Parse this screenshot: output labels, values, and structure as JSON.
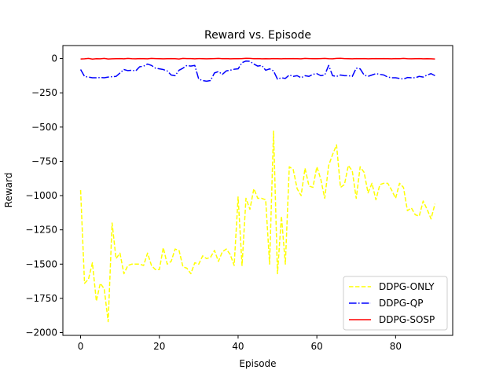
{
  "chart_data": {
    "type": "line",
    "title": "Reward vs. Episode",
    "xlabel": "Episode",
    "ylabel": "Reward",
    "xlim": [
      -4.5,
      94.5
    ],
    "ylim": [
      -2020,
      95
    ],
    "xticks": [
      0,
      20,
      40,
      60,
      80
    ],
    "yticks": [
      0,
      -250,
      -500,
      -750,
      -1000,
      -1250,
      -1500,
      -1750,
      -2000
    ],
    "ytick_labels": [
      "0",
      "−250",
      "−500",
      "−750",
      "−1000",
      "−1250",
      "−1500",
      "−1750",
      "−2000"
    ],
    "grid": false,
    "legend_position": "lower-right",
    "series": [
      {
        "name": "DDPG-ONLY",
        "color": "#ffff00",
        "linestyle": "dashed",
        "values": [
          -960,
          -1640,
          -1610,
          -1490,
          -1770,
          -1640,
          -1680,
          -1920,
          -1200,
          -1460,
          -1420,
          -1570,
          -1510,
          -1500,
          -1500,
          -1500,
          -1510,
          -1420,
          -1510,
          -1540,
          -1540,
          -1380,
          -1500,
          -1480,
          -1390,
          -1400,
          -1520,
          -1530,
          -1570,
          -1490,
          -1500,
          -1440,
          -1460,
          -1450,
          -1400,
          -1480,
          -1410,
          -1390,
          -1430,
          -1510,
          -1010,
          -1510,
          -1020,
          -1100,
          -950,
          -1020,
          -1020,
          -1030,
          -1500,
          -530,
          -1570,
          -1150,
          -1500,
          -790,
          -810,
          -950,
          -1000,
          -800,
          -930,
          -940,
          -790,
          -880,
          -1020,
          -780,
          -700,
          -630,
          -940,
          -920,
          -780,
          -820,
          -1020,
          -790,
          -830,
          -980,
          -910,
          -1030,
          -920,
          -910,
          -910,
          -960,
          -1020,
          -910,
          -940,
          -1110,
          -1090,
          -1140,
          -1150,
          -1040,
          -1100,
          -1170,
          -1060
        ]
      },
      {
        "name": "DDPG-QP",
        "color": "#0000ff",
        "linestyle": "dashdot",
        "values": [
          -80,
          -130,
          -135,
          -140,
          -140,
          -138,
          -140,
          -135,
          -132,
          -130,
          -105,
          -80,
          -88,
          -85,
          -90,
          -60,
          -55,
          -40,
          -50,
          -70,
          -75,
          -80,
          -90,
          -120,
          -125,
          -85,
          -70,
          -50,
          -55,
          -50,
          -150,
          -160,
          -165,
          -160,
          -105,
          -95,
          -115,
          -90,
          -85,
          -78,
          -75,
          -30,
          -18,
          -20,
          -40,
          -55,
          -50,
          -85,
          -75,
          -90,
          -150,
          -140,
          -145,
          -120,
          -130,
          -125,
          -140,
          -125,
          -130,
          -115,
          -110,
          -125,
          -120,
          -50,
          -125,
          -130,
          -120,
          -125,
          -125,
          -130,
          -70,
          -75,
          -120,
          -130,
          -120,
          -110,
          -115,
          -120,
          -135,
          -140,
          -140,
          -145,
          -150,
          -138,
          -140,
          -140,
          -130,
          -135,
          -120,
          -110,
          -125
        ]
      },
      {
        "name": "DDPG-SOSP",
        "color": "#ff0000",
        "linestyle": "solid",
        "values": [
          -3,
          -2,
          1,
          -4,
          -1,
          -2,
          1,
          -3,
          -2,
          -1,
          0,
          -2,
          1,
          -1,
          -2,
          0,
          -1,
          -2,
          1,
          0,
          -1,
          -2,
          -1,
          0,
          -1,
          -3,
          1,
          0,
          0,
          -2,
          0,
          -1,
          -2,
          -1,
          0,
          1,
          -1,
          0,
          -2,
          -1,
          -1,
          0,
          2,
          1,
          -1,
          0,
          -2,
          -1,
          -2,
          0,
          -1,
          -2,
          0,
          -1,
          0,
          -1,
          -2,
          1,
          0,
          -1,
          -1,
          0,
          1,
          -1,
          -2,
          1,
          2,
          0,
          -1,
          -2,
          0,
          -1,
          0,
          -2,
          -1,
          0,
          -1,
          0,
          -1,
          -2,
          0,
          -1,
          1,
          -1,
          -2,
          -1,
          0,
          -2,
          -1,
          -2,
          -3
        ]
      }
    ]
  }
}
